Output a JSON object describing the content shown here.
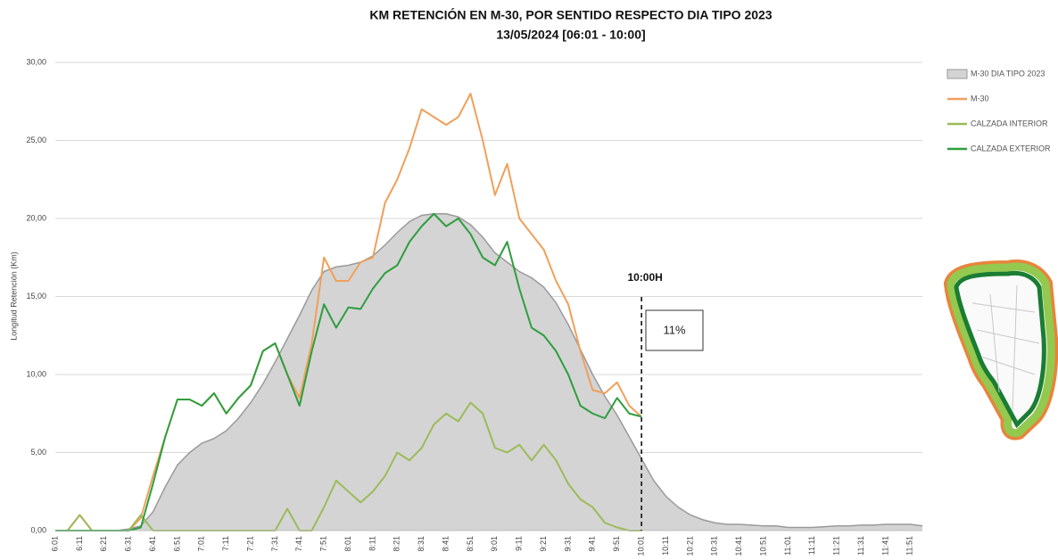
{
  "chart_data": {
    "type": "line",
    "title": "KM RETENCIÓN EN M-30, POR SENTIDO RESPECTO DIA TIPO 2023",
    "subtitle": "13/05/2024    [06:01 - 10:00]",
    "y_label": "Longitud Retención (Km)",
    "categories": [
      "6:01",
      null,
      "6:11",
      null,
      "6:21",
      null,
      "6:31",
      null,
      "6:41",
      null,
      "6:51",
      null,
      "7:01",
      null,
      "7:11",
      null,
      "7:21",
      null,
      "7:31",
      null,
      "7:41",
      null,
      "7:51",
      null,
      "8:01",
      null,
      "8:11",
      null,
      "8:21",
      null,
      "8:31",
      null,
      "8:41",
      null,
      "8:51",
      null,
      "9:01",
      null,
      "9:11",
      null,
      "9:21",
      null,
      "9:31",
      null,
      "9:41",
      null,
      "9:51",
      null,
      "10:01",
      null,
      "10:11",
      null,
      "10:21",
      null,
      "10:31",
      null,
      "10:41",
      null,
      "10:51",
      null,
      "11:01",
      null,
      "11:11",
      null,
      "11:21",
      null,
      "11:31",
      null,
      "11:41",
      null,
      "11:51",
      null
    ],
    "ylim": [
      0,
      30
    ],
    "yticks": [
      {
        "value": 0,
        "label": "0,00"
      },
      {
        "value": 5,
        "label": "5,00"
      },
      {
        "value": 10,
        "label": "10,00"
      },
      {
        "value": 15,
        "label": "15,00"
      },
      {
        "value": 20,
        "label": "20,00"
      },
      {
        "value": 25,
        "label": "25,00"
      },
      {
        "value": 30,
        "label": "30,00"
      }
    ],
    "grid": true,
    "legend": "right",
    "series": [
      {
        "name": "M-30 DIA TIPO 2023",
        "type": "area",
        "color": "#d4d4d4",
        "line_color": "#9a9a9a",
        "values": [
          0,
          0,
          0,
          0,
          0,
          0,
          0.1,
          0.3,
          1.2,
          2.8,
          4.2,
          5.0,
          5.6,
          5.9,
          6.4,
          7.2,
          8.2,
          9.4,
          10.8,
          12.3,
          13.8,
          15.4,
          16.6,
          16.9,
          17.0,
          17.2,
          17.6,
          18.3,
          19.1,
          19.8,
          20.2,
          20.3,
          20.3,
          20.1,
          19.6,
          18.8,
          17.8,
          17.2,
          16.6,
          16.2,
          15.6,
          14.6,
          13.2,
          11.6,
          10.0,
          8.6,
          7.4,
          6.0,
          4.6,
          3.2,
          2.2,
          1.5,
          1.0,
          0.7,
          0.5,
          0.4,
          0.4,
          0.35,
          0.3,
          0.3,
          0.2,
          0.2,
          0.2,
          0.25,
          0.3,
          0.3,
          0.35,
          0.35,
          0.4,
          0.4,
          0.4,
          0.3
        ]
      },
      {
        "name": "M-30",
        "type": "line",
        "color": "#f0a05a",
        "values": [
          0,
          0,
          1.0,
          0,
          0,
          0,
          0,
          0.8,
          3.5,
          6.0,
          8.4,
          8.4,
          8.0,
          8.8,
          7.5,
          8.5,
          9.3,
          11.5,
          12.0,
          10.0,
          8.5,
          12.0,
          17.5,
          16.0,
          16.0,
          17.2,
          17.5,
          21.0,
          22.5,
          24.5,
          27.0,
          26.5,
          26.0,
          26.5,
          28.0,
          25.0,
          21.5,
          23.5,
          20.0,
          19.0,
          18.0,
          16.0,
          14.5,
          11.5,
          9.0,
          8.8,
          9.5,
          8.0,
          7.3,
          null,
          null,
          null,
          null,
          null,
          null,
          null,
          null,
          null,
          null,
          null,
          null,
          null,
          null,
          null,
          null,
          null,
          null,
          null,
          null,
          null,
          null,
          null
        ]
      },
      {
        "name": "CALZADA INTERIOR",
        "type": "line",
        "color": "#9bbb59",
        "values": [
          0,
          0,
          1.0,
          0,
          0,
          0,
          0,
          1.0,
          0,
          0,
          0,
          0,
          0,
          0,
          0,
          0,
          0,
          0,
          0,
          1.4,
          0,
          0,
          1.5,
          3.2,
          2.5,
          1.8,
          2.5,
          3.5,
          5.0,
          4.5,
          5.3,
          6.8,
          7.5,
          7.0,
          8.2,
          7.5,
          5.3,
          5.0,
          5.5,
          4.5,
          5.5,
          4.5,
          3.0,
          2.0,
          1.5,
          0.5,
          0.2,
          0,
          0,
          null,
          null,
          null,
          null,
          null,
          null,
          null,
          null,
          null,
          null,
          null,
          null,
          null,
          null,
          null,
          null,
          null,
          null,
          null,
          null,
          null,
          null,
          null
        ]
      },
      {
        "name": "CALZADA EXTERIOR",
        "type": "line",
        "color": "#2e9e3e",
        "values": [
          0,
          0,
          0,
          0,
          0,
          0,
          0,
          0.2,
          3.0,
          6.0,
          8.4,
          8.4,
          8.0,
          8.8,
          7.5,
          8.5,
          9.3,
          11.5,
          12.0,
          10.0,
          8.0,
          11.5,
          14.5,
          13.0,
          14.3,
          14.2,
          15.5,
          16.5,
          17.0,
          18.5,
          19.5,
          20.3,
          19.5,
          20.0,
          19.0,
          17.5,
          17.0,
          18.5,
          15.5,
          13.0,
          12.5,
          11.5,
          10.0,
          8.0,
          7.5,
          7.2,
          8.5,
          7.5,
          7.3,
          null,
          null,
          null,
          null,
          null,
          null,
          null,
          null,
          null,
          null,
          null,
          null,
          null,
          null,
          null,
          null,
          null,
          null,
          null,
          null,
          null,
          null,
          null
        ]
      }
    ],
    "annotations": [
      "10:00H",
      "11%"
    ]
  }
}
